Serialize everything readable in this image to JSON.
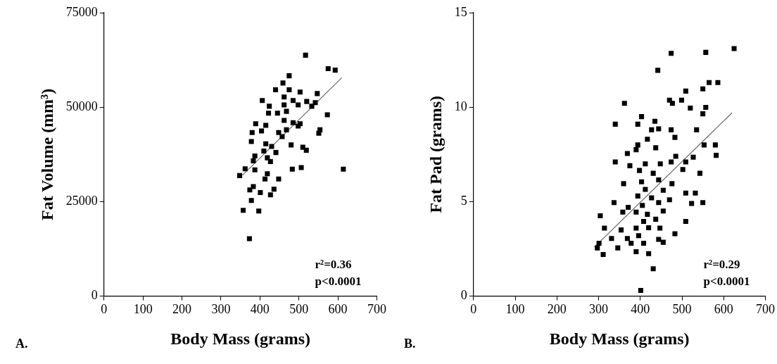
{
  "chart_data": [
    {
      "type": "scatter",
      "title": "A.",
      "xlabel": "Body Mass (grams)",
      "ylabel": "Fat Volume (mm³)",
      "xlim": [
        0,
        700
      ],
      "xticks": [
        0,
        100,
        200,
        300,
        400,
        500,
        600,
        700
      ],
      "ylim": [
        0,
        75000
      ],
      "yticks": [
        0,
        25000,
        50000,
        75000
      ],
      "legend": false,
      "marker": "square",
      "annotations": [
        "r²=0.36",
        "p<0.0001"
      ],
      "series": [
        {
          "color": "#000000",
          "x": [
            517,
            575,
            593,
            475,
            459,
            440,
            475,
            503,
            547,
            462,
            406,
            485,
            520,
            542,
            424,
            462,
            498,
            533,
            422,
            445,
            468,
            573,
            462,
            503,
            389,
            415,
            485,
            554,
            551,
            380,
            404,
            448,
            468,
            498,
            457,
            378,
            415,
            430,
            480,
            510,
            519,
            410,
            441,
            387,
            419,
            383,
            427,
            362,
            387,
            483,
            506,
            614,
            348,
            419,
            448,
            413,
            374,
            401,
            383,
            427,
            436,
            378,
            357,
            397,
            373
          ],
          "values": [
            63750,
            60200,
            59800,
            58300,
            56400,
            54600,
            54600,
            54000,
            53600,
            52700,
            51750,
            51750,
            51500,
            51200,
            50250,
            50600,
            50600,
            50250,
            48400,
            48400,
            48900,
            48000,
            46500,
            45600,
            45600,
            45200,
            45900,
            44000,
            43100,
            43300,
            43700,
            43300,
            44000,
            45000,
            42200,
            40900,
            40300,
            39600,
            40000,
            39400,
            38600,
            38400,
            38000,
            37100,
            36600,
            35800,
            35600,
            33700,
            33400,
            33600,
            34000,
            33600,
            31900,
            32400,
            31000,
            31000,
            28100,
            27400,
            29000,
            26800,
            28300,
            25300,
            22700,
            22500,
            15200
          ]
        },
        {
          "type": "line",
          "marker": "none",
          "color": "#666666",
          "x": [
            355,
            610
          ],
          "values": [
            32000,
            57800
          ]
        }
      ]
    },
    {
      "type": "scatter",
      "title": "B.",
      "xlabel": "Body Mass (grams)",
      "ylabel": "Fat Pad (grams)",
      "xlim": [
        0,
        700
      ],
      "xticks": [
        0,
        100,
        200,
        300,
        400,
        500,
        600,
        700
      ],
      "ylim": [
        0,
        15
      ],
      "yticks": [
        0,
        5,
        10,
        15
      ],
      "legend": false,
      "marker": "square",
      "annotations": [
        "r²=0.29",
        "p<0.0001"
      ],
      "series": [
        {
          "color": "#000000",
          "x": [
            474,
            557,
            625,
            442,
            565,
            586,
            550,
            509,
            362,
            470,
            477,
            499,
            520,
            557,
            550,
            403,
            340,
            394,
            435,
            444,
            427,
            474,
            535,
            483,
            417,
            394,
            390,
            437,
            553,
            580,
            582,
            369,
            340,
            485,
            509,
            375,
            412,
            448,
            474,
            527,
            543,
            398,
            431,
            502,
            360,
            403,
            444,
            476,
            412,
            455,
            509,
            532,
            394,
            427,
            337,
            371,
            405,
            444,
            470,
            523,
            550,
            358,
            390,
            417,
            455,
            304,
            408,
            437,
            509,
            314,
            354,
            390,
            420,
            447,
            483,
            331,
            369,
            396,
            444,
            301,
            378,
            408,
            455,
            297,
            346,
            390,
            420,
            311,
            431,
            401
          ],
          "values": [
            12.85,
            12.9,
            13.1,
            11.95,
            11.3,
            11.3,
            10.97,
            10.85,
            10.2,
            10.37,
            10.2,
            10.37,
            9.95,
            9.99,
            9.65,
            9.5,
            9.1,
            9.1,
            9.25,
            8.85,
            8.8,
            8.8,
            8.8,
            8.4,
            8.3,
            8.0,
            7.75,
            7.85,
            8.0,
            8.0,
            7.45,
            7.55,
            7.1,
            7.4,
            7.1,
            6.9,
            7.0,
            7.0,
            7.1,
            7.35,
            6.5,
            6.65,
            6.5,
            6.7,
            5.95,
            6.05,
            6.15,
            5.95,
            5.65,
            5.6,
            5.45,
            5.45,
            5.3,
            5.2,
            4.95,
            4.7,
            4.8,
            4.95,
            5.1,
            4.9,
            4.95,
            4.45,
            4.45,
            4.33,
            4.5,
            4.25,
            3.95,
            4.07,
            3.95,
            3.6,
            3.5,
            3.6,
            3.62,
            3.6,
            3.3,
            3.05,
            3.05,
            3.2,
            3.0,
            2.8,
            2.8,
            2.8,
            2.85,
            2.55,
            2.55,
            2.35,
            2.25,
            2.2,
            1.45,
            0.3
          ]
        },
        {
          "type": "line",
          "marker": "none",
          "color": "#666666",
          "x": [
            290,
            620
          ],
          "values": [
            2.6,
            9.7
          ]
        }
      ]
    }
  ]
}
